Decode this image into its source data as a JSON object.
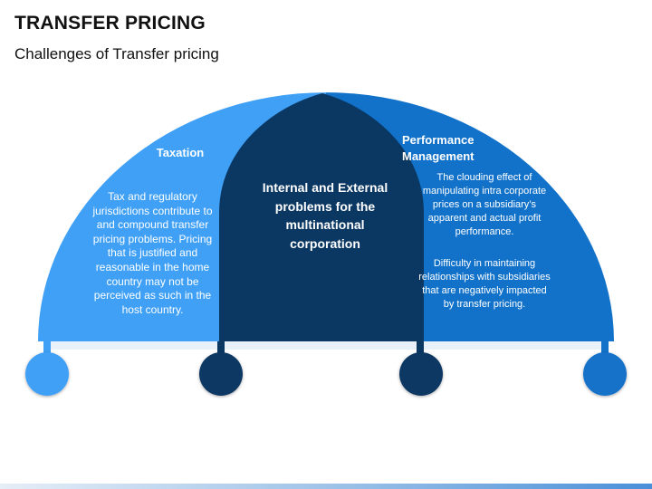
{
  "title": "TRANSFER PRICING",
  "subtitle": "Challenges of Transfer pricing",
  "left": {
    "heading": "Taxation",
    "body": "Tax and regulatory jurisdictions contribute to and compound transfer pricing problems. Pricing that is justified and reasonable in the home country may not be perceived as such in the host country."
  },
  "center": {
    "text": "Internal and External problems for the multinational corporation"
  },
  "right": {
    "heading": "Performance Management",
    "body1": "The clouding effect of manipulating intra corporate prices on a subsidiary’s apparent and actual profit performance.",
    "body2": "Difficulty in maintaining relationships with subsidiaries that are negatively impacted by transfer pricing."
  },
  "colors": {
    "light_blue": "#3fa0f5",
    "mid_blue": "#1272c9",
    "dark_navy": "#0b3763"
  }
}
